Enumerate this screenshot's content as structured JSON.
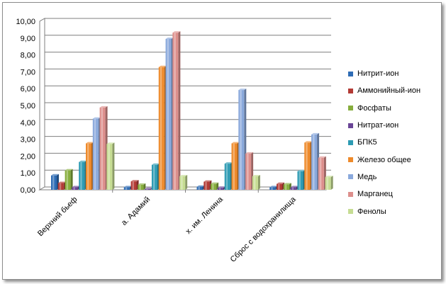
{
  "chart_data": {
    "type": "bar",
    "title": "",
    "xlabel": "",
    "ylabel": "",
    "ylim": [
      0,
      10
    ],
    "yticks": [
      "0,00",
      "1,00",
      "2,00",
      "3,00",
      "4,00",
      "5,00",
      "6,00",
      "7,00",
      "8,00",
      "9,00",
      "10,00"
    ],
    "grid": true,
    "legend_position": "right",
    "categories": [
      "Верхний бьеф",
      "а. Адамий",
      "х. им. Ленина",
      "Сброс с водохранилища"
    ],
    "series": [
      {
        "name": "Нитрит-ион",
        "color": "#2e6cb5",
        "values": [
          0.85,
          0.15,
          0.18,
          0.15
        ]
      },
      {
        "name": "Аммонийный-ион",
        "color": "#b33a35",
        "values": [
          0.4,
          0.5,
          0.48,
          0.35
        ]
      },
      {
        "name": "Фосфаты",
        "color": "#86ad3c",
        "values": [
          1.15,
          0.3,
          0.35,
          0.32
        ]
      },
      {
        "name": "Нитрат-ион",
        "color": "#6a4596",
        "values": [
          0.15,
          0.05,
          0.12,
          0.15
        ]
      },
      {
        "name": "БПК5",
        "color": "#2d9bb3",
        "values": [
          1.65,
          1.48,
          1.55,
          1.1
        ]
      },
      {
        "name": "Железо общее",
        "color": "#ee8a2b",
        "values": [
          2.75,
          7.28,
          2.75,
          2.8
        ]
      },
      {
        "name": "Медь",
        "color": "#8aa9dc",
        "values": [
          4.22,
          8.95,
          5.92,
          3.28
        ]
      },
      {
        "name": "Марганец",
        "color": "#dd8f8c",
        "values": [
          4.88,
          9.32,
          2.15,
          1.9
        ]
      },
      {
        "name": "Фенолы",
        "color": "#c6dd93",
        "values": [
          2.72,
          0.8,
          0.8,
          0.75
        ]
      }
    ]
  }
}
